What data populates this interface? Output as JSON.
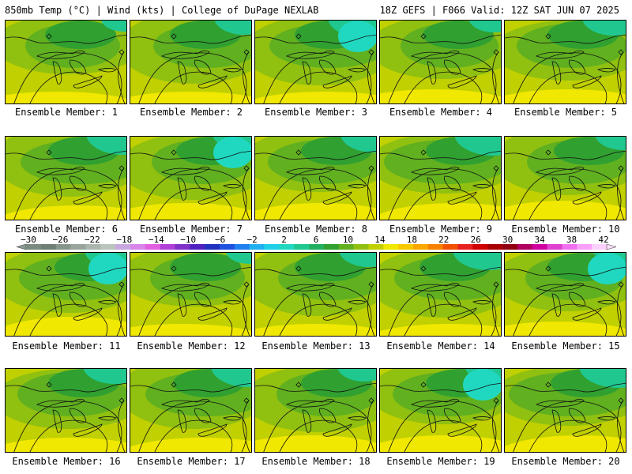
{
  "header": {
    "left": "850mb Temp (°C) | Wind (kts) | College of DuPage NEXLAB",
    "right": "18Z GEFS | F066 Valid: 12Z SAT JUN 07 2025"
  },
  "panels": [
    "Ensemble Member: 1",
    "Ensemble Member: 2",
    "Ensemble Member: 3",
    "Ensemble Member: 4",
    "Ensemble Member: 5",
    "Ensemble Member: 6",
    "Ensemble Member: 7",
    "Ensemble Member: 8",
    "Ensemble Member: 9",
    "Ensemble Member: 10",
    "Ensemble Member: 11",
    "Ensemble Member: 12",
    "Ensemble Member: 13",
    "Ensemble Member: 14",
    "Ensemble Member: 15",
    "Ensemble Member: 16",
    "Ensemble Member: 17",
    "Ensemble Member: 18",
    "Ensemble Member: 19",
    "Ensemble Member: 20"
  ],
  "colorbar": {
    "ticks": [
      "−30",
      "−26",
      "−22",
      "−18",
      "−14",
      "−10",
      "−6",
      "−2",
      "2",
      "6",
      "10",
      "14",
      "18",
      "22",
      "26",
      "30",
      "34",
      "38",
      "42"
    ],
    "colors": [
      "#7b8a80",
      "#6f7f76",
      "#86968c",
      "#98a59c",
      "#a9b5ad",
      "#b9c4bd",
      "#c9a8e0",
      "#d884e8",
      "#e060e0",
      "#b040d8",
      "#8030c8",
      "#5020c0",
      "#2030c0",
      "#2050e0",
      "#2080f0",
      "#20b0f0",
      "#20d0e8",
      "#20d8c0",
      "#20c890",
      "#20b060",
      "#30a030",
      "#60b020",
      "#90c010",
      "#c0d000",
      "#f0e800",
      "#f8c800",
      "#f8a800",
      "#f88000",
      "#f05000",
      "#e82020",
      "#d00000",
      "#a80000",
      "#900010",
      "#b00060",
      "#d000a0",
      "#e040d0",
      "#f070f0",
      "#f8a0f8",
      "#fcd0fc"
    ]
  }
}
